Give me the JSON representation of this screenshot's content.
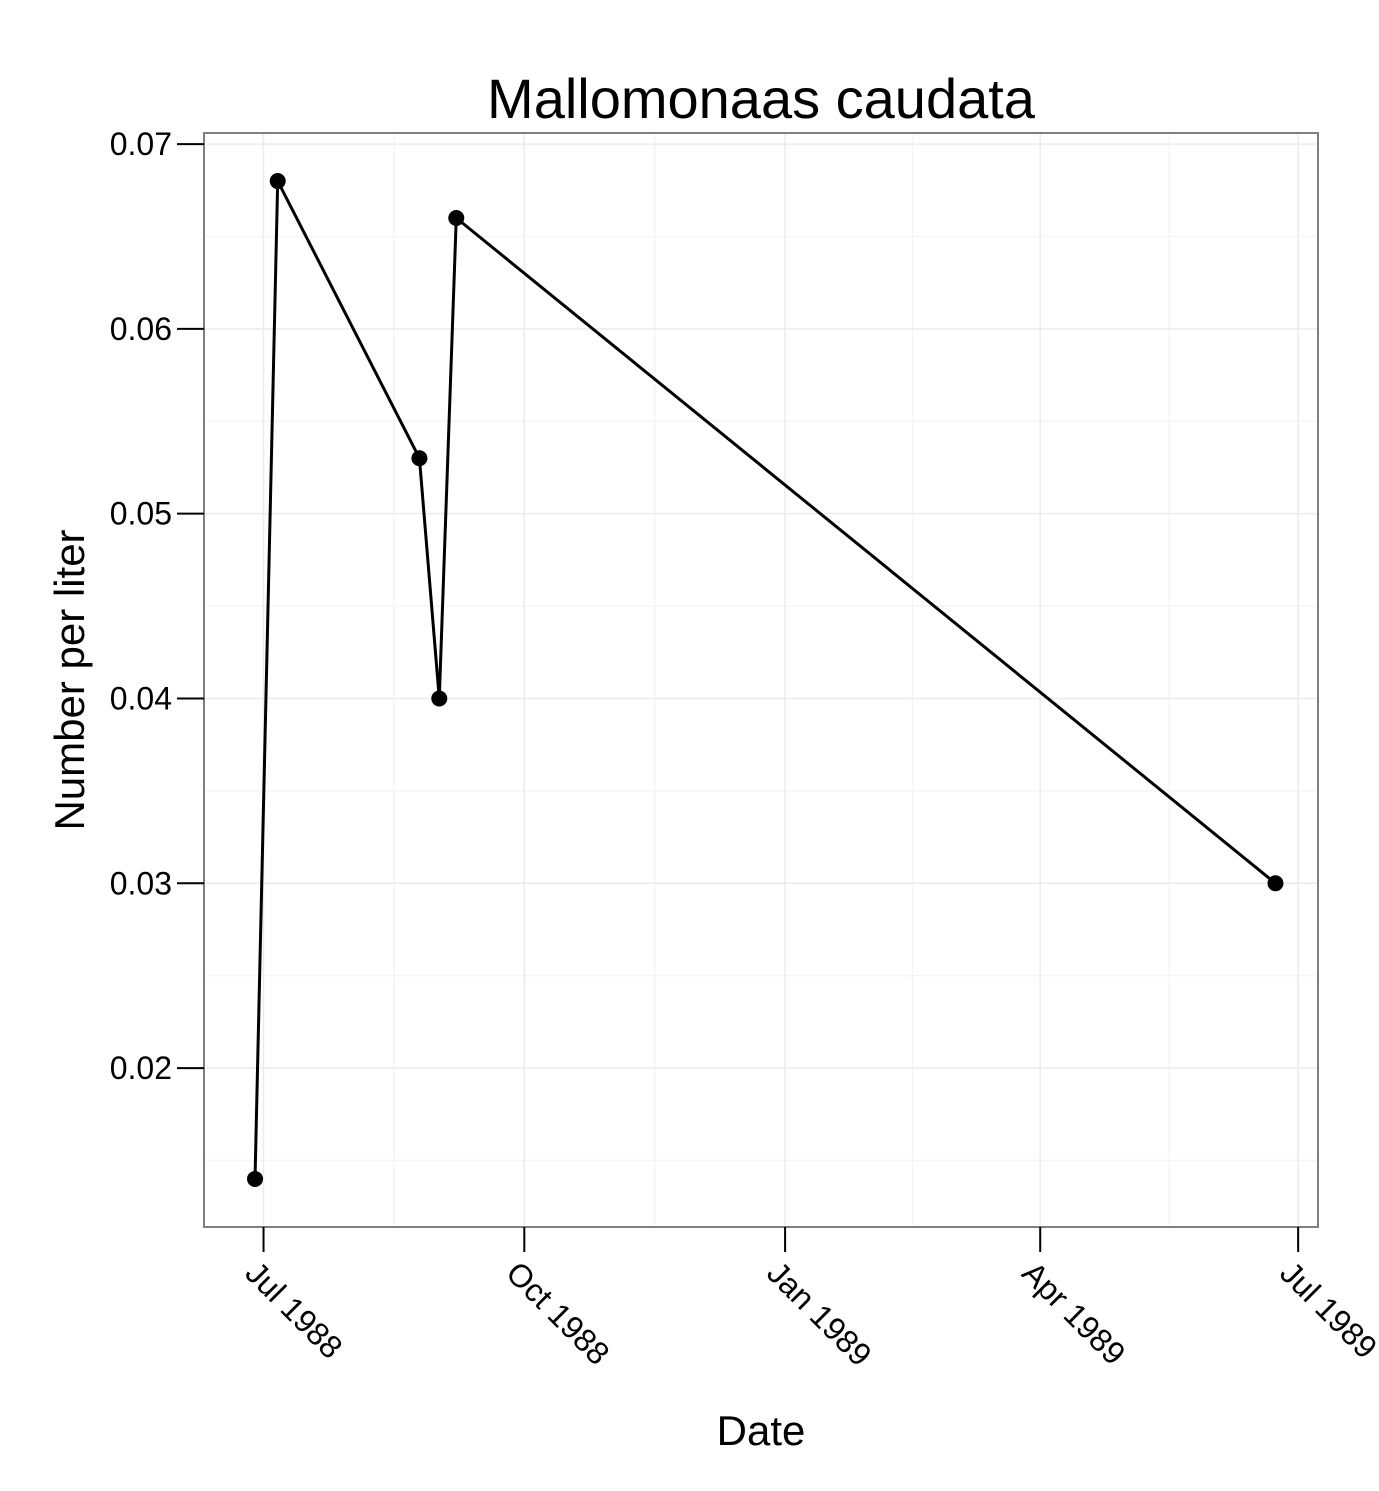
{
  "chart_data": {
    "type": "line",
    "title": "Mallomonaas caudata",
    "xlabel": "Date",
    "ylabel": "Number per liter",
    "x_tick_labels": [
      "Jul 1988",
      "Oct 1988",
      "Jan 1989",
      "Apr 1989",
      "Jul 1989"
    ],
    "x_tick_dates": [
      "1988-07-01",
      "1988-10-01",
      "1989-01-01",
      "1989-04-01",
      "1989-07-01"
    ],
    "y_tick_labels": [
      "0.02",
      "0.03",
      "0.04",
      "0.05",
      "0.06",
      "0.07"
    ],
    "y_ticks": [
      0.02,
      0.03,
      0.04,
      0.05,
      0.06,
      0.07
    ],
    "xlim": [
      "1988-06-10",
      "1989-07-08"
    ],
    "ylim": [
      0.0114,
      0.0706
    ],
    "grid": true,
    "series": [
      {
        "x": [
          "1988-06-28",
          "1988-07-06",
          "1988-08-25",
          "1988-09-01",
          "1988-09-07",
          "1989-06-23"
        ],
        "y": [
          0.014,
          0.068,
          0.053,
          0.04,
          0.066,
          0.03
        ]
      }
    ],
    "colors": {
      "line": "#000000",
      "point": "#000000",
      "panel_border": "#7f7f7f",
      "grid_major": "#ebebeb",
      "grid_minor": "#f5f5f5"
    }
  }
}
